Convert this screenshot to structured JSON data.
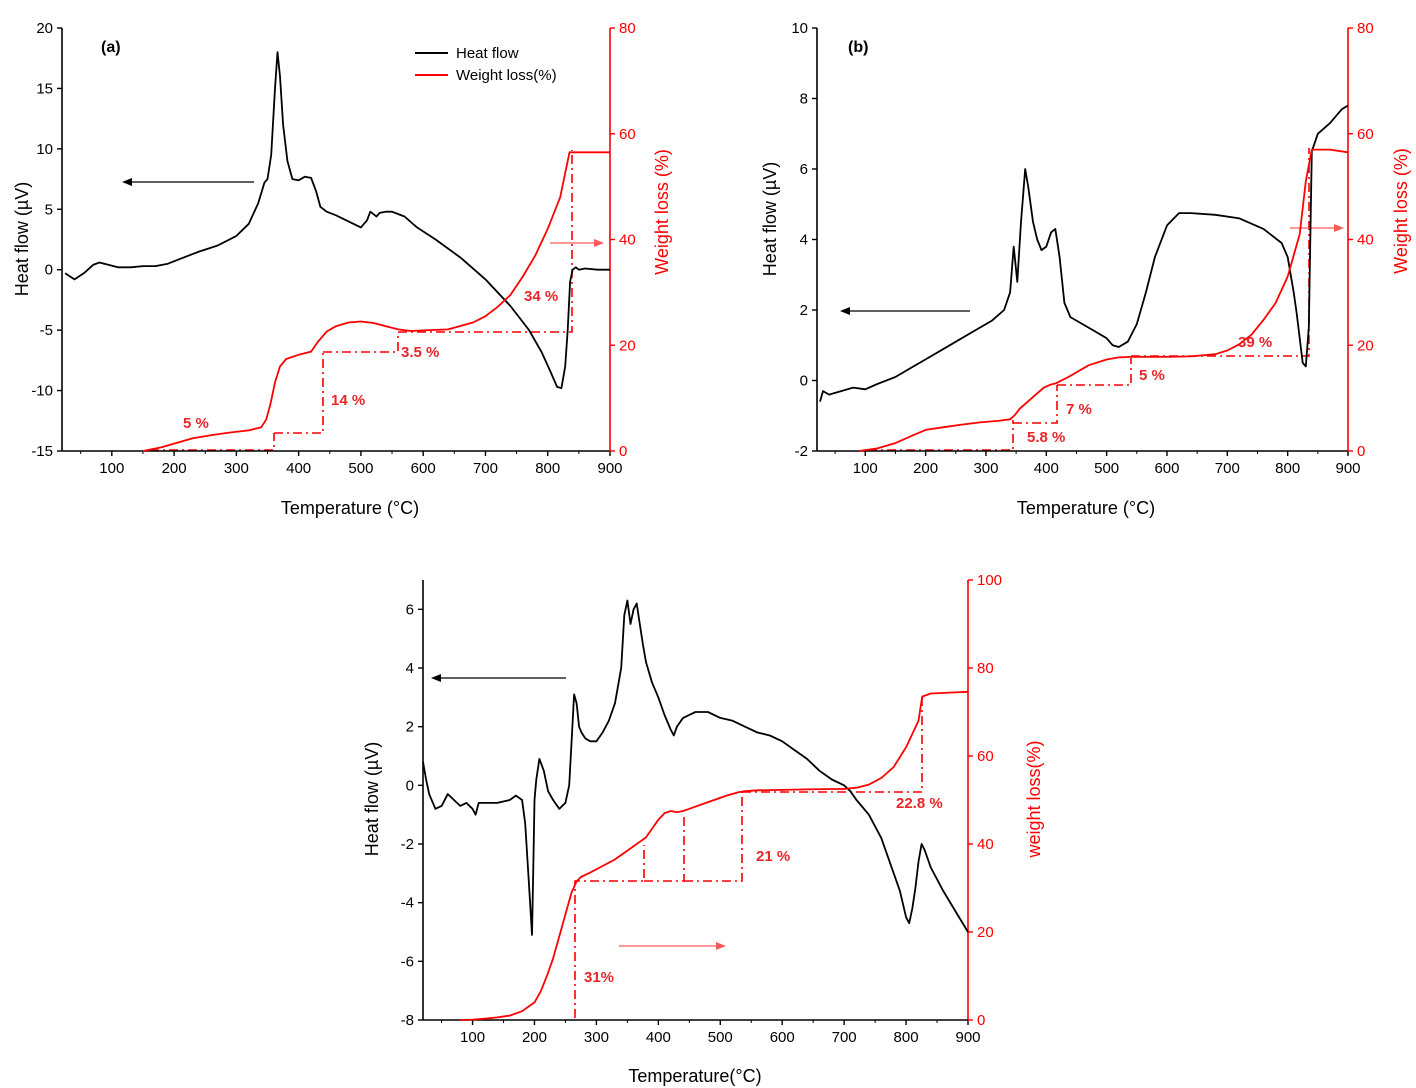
{
  "chart_data": [
    {
      "type": "line",
      "panel_label": "(a)",
      "xlabel": "Temperature (°C)",
      "ylabel": "Heat flow (µV)",
      "y2label": "Weight loss (%)",
      "xlim": [
        20,
        900
      ],
      "ylim": [
        -15,
        20
      ],
      "y2lim": [
        0,
        80
      ],
      "xticks": [
        100,
        200,
        300,
        400,
        500,
        600,
        700,
        800,
        900
      ],
      "yticks": [
        -15,
        -10,
        -5,
        0,
        5,
        10,
        15,
        20
      ],
      "y2ticks": [
        0,
        20,
        40,
        60,
        80
      ],
      "legend": {
        "placement": "top-center",
        "entries": [
          {
            "label": "Heat flow",
            "color": "#000000"
          },
          {
            "label": "Weight loss(%)",
            "color": "#ff0000"
          }
        ]
      },
      "series": [
        {
          "name": "Heat flow",
          "axis": "left",
          "color": "#000000",
          "x": [
            25,
            40,
            55,
            70,
            80,
            95,
            110,
            130,
            150,
            170,
            190,
            210,
            240,
            270,
            300,
            320,
            335,
            345,
            350,
            356,
            362,
            366,
            370,
            375,
            382,
            390,
            400,
            410,
            420,
            428,
            435,
            445,
            460,
            480,
            500,
            510,
            515,
            520,
            525,
            530,
            540,
            550,
            560,
            570,
            590,
            620,
            660,
            700,
            740,
            770,
            790,
            805,
            815,
            822,
            828,
            832,
            836,
            840,
            845,
            850,
            860,
            880,
            900
          ],
          "y": [
            -0.3,
            -0.8,
            -0.3,
            0.4,
            0.6,
            0.4,
            0.2,
            0.2,
            0.3,
            0.3,
            0.5,
            0.9,
            1.5,
            2,
            2.8,
            3.8,
            5.5,
            7.2,
            7.5,
            9.5,
            15,
            18,
            16,
            12,
            9,
            7.5,
            7.4,
            7.7,
            7.6,
            6.5,
            5.2,
            4.8,
            4.5,
            4,
            3.5,
            4.1,
            4.8,
            4.6,
            4.4,
            4.7,
            4.8,
            4.8,
            4.6,
            4.4,
            3.5,
            2.5,
            1,
            -0.8,
            -3,
            -5,
            -6.8,
            -8.5,
            -9.7,
            -9.8,
            -8,
            -5,
            -1,
            0,
            0.2,
            0,
            0.1,
            0,
            0
          ]
        },
        {
          "name": "Weight loss(%)",
          "axis": "right",
          "color": "#ff0000",
          "x": [
            150,
            180,
            200,
            230,
            260,
            290,
            320,
            340,
            348,
            355,
            362,
            370,
            380,
            400,
            420,
            430,
            445,
            460,
            480,
            500,
            520,
            540,
            560,
            580,
            600,
            640,
            680,
            700,
            720,
            740,
            760,
            780,
            800,
            820,
            835,
            850,
            900
          ],
          "y": [
            0,
            0.7,
            1.4,
            2.4,
            3,
            3.5,
            3.9,
            4.5,
            6,
            9,
            13,
            16,
            17.4,
            18.2,
            18.8,
            20.5,
            22.6,
            23.6,
            24.3,
            24.5,
            24.2,
            23.6,
            23,
            22.7,
            22.8,
            23,
            24.3,
            25.5,
            27.3,
            29.5,
            33,
            37,
            42,
            48,
            56.5,
            56.5,
            56.5
          ]
        }
      ],
      "annotations": [
        "5 %",
        "14 %",
        "3.5 %",
        "34 %"
      ]
    },
    {
      "type": "line",
      "panel_label": "(b)",
      "xlabel": "Temperature (°C)",
      "ylabel": "Heat flow (µV)",
      "y2label": "Weight loss (%)",
      "xlim": [
        20,
        900
      ],
      "ylim": [
        -2,
        10
      ],
      "y2lim": [
        0,
        80
      ],
      "xticks": [
        100,
        200,
        300,
        400,
        500,
        600,
        700,
        800,
        900
      ],
      "yticks": [
        -2,
        0,
        2,
        4,
        6,
        8,
        10
      ],
      "y2ticks": [
        0,
        20,
        40,
        60,
        80
      ],
      "series": [
        {
          "name": "Heat flow",
          "axis": "left",
          "color": "#000000",
          "x": [
            25,
            30,
            40,
            60,
            80,
            100,
            120,
            150,
            180,
            200,
            230,
            260,
            290,
            310,
            330,
            340,
            346,
            352,
            358,
            365,
            370,
            378,
            385,
            392,
            400,
            408,
            415,
            422,
            430,
            440,
            460,
            480,
            500,
            510,
            520,
            535,
            550,
            565,
            580,
            600,
            620,
            640,
            680,
            720,
            760,
            790,
            800,
            805,
            810,
            815,
            820,
            825,
            830,
            835,
            840,
            850,
            870,
            890,
            900
          ],
          "y": [
            -0.6,
            -0.3,
            -0.4,
            -0.3,
            -0.2,
            -0.25,
            -0.1,
            0.1,
            0.4,
            0.6,
            0.9,
            1.2,
            1.5,
            1.7,
            2,
            2.5,
            3.8,
            2.8,
            4.5,
            6,
            5.5,
            4.5,
            4,
            3.7,
            3.8,
            4.2,
            4.3,
            3.5,
            2.2,
            1.8,
            1.6,
            1.4,
            1.2,
            1,
            0.95,
            1.1,
            1.6,
            2.5,
            3.5,
            4.4,
            4.75,
            4.75,
            4.7,
            4.6,
            4.3,
            3.9,
            3.5,
            3,
            2.5,
            1.9,
            1.2,
            0.5,
            0.4,
            1.5,
            6.5,
            7,
            7.3,
            7.7,
            7.8
          ]
        },
        {
          "name": "Weight loss(%)",
          "axis": "right",
          "color": "#ff0000",
          "x": [
            90,
            120,
            150,
            180,
            200,
            230,
            260,
            290,
            320,
            340,
            348,
            356,
            366,
            376,
            386,
            396,
            406,
            416,
            440,
            470,
            500,
            520,
            540,
            560,
            600,
            640,
            680,
            700,
            720,
            740,
            760,
            780,
            800,
            820,
            830,
            840,
            870,
            900
          ],
          "y": [
            0,
            0.5,
            1.5,
            3,
            4,
            4.5,
            5,
            5.4,
            5.7,
            6,
            6.8,
            8,
            9,
            10,
            11,
            12,
            12.5,
            12.8,
            14.2,
            16.2,
            17.3,
            17.7,
            17.8,
            17.8,
            17.8,
            17.9,
            18.3,
            19,
            20.2,
            22,
            24.8,
            28,
            33,
            41,
            51,
            57,
            57,
            56.5
          ]
        }
      ],
      "annotations": [
        "5.8 %",
        "7 %",
        "5 %",
        "39 %"
      ]
    },
    {
      "type": "line",
      "panel_label": "",
      "xlabel": "Temperature(°C)",
      "ylabel": "Heat flow (µV)",
      "y2label": "weight loss(%)",
      "xlim": [
        20,
        900
      ],
      "ylim": [
        -8,
        7
      ],
      "y2lim": [
        0,
        100
      ],
      "xticks": [
        100,
        200,
        300,
        400,
        500,
        600,
        700,
        800,
        900
      ],
      "yticks": [
        -8,
        -6,
        -4,
        -2,
        0,
        2,
        4,
        6
      ],
      "y2ticks": [
        0,
        20,
        40,
        60,
        80,
        100
      ],
      "series": [
        {
          "name": "Heat flow",
          "axis": "left",
          "color": "#000000",
          "x": [
            20,
            25,
            30,
            40,
            50,
            60,
            70,
            80,
            90,
            100,
            105,
            110,
            120,
            140,
            160,
            170,
            180,
            185,
            190,
            193,
            196,
            198,
            200,
            203,
            208,
            215,
            222,
            230,
            240,
            250,
            256,
            260,
            264,
            268,
            272,
            276,
            282,
            290,
            300,
            310,
            320,
            330,
            340,
            345,
            350,
            355,
            360,
            365,
            370,
            375,
            380,
            390,
            400,
            410,
            420,
            425,
            430,
            440,
            450,
            460,
            470,
            480,
            500,
            520,
            540,
            560,
            580,
            600,
            620,
            640,
            660,
            680,
            700,
            710,
            720,
            740,
            760,
            780,
            790,
            800,
            805,
            810,
            815,
            820,
            825,
            830,
            840,
            860,
            880,
            900
          ],
          "y": [
            0.8,
            0.2,
            -0.3,
            -0.8,
            -0.7,
            -0.3,
            -0.5,
            -0.7,
            -0.6,
            -0.8,
            -1,
            -0.6,
            -0.6,
            -0.6,
            -0.5,
            -0.35,
            -0.5,
            -1.3,
            -3,
            -4,
            -5.1,
            -3,
            -0.5,
            0.2,
            0.9,
            0.5,
            -0.2,
            -0.5,
            -0.8,
            -0.6,
            0,
            1.5,
            3.1,
            2.8,
            2,
            1.8,
            1.6,
            1.5,
            1.5,
            1.8,
            2.2,
            2.8,
            4,
            5.8,
            6.3,
            5.5,
            6,
            6.2,
            5.5,
            4.8,
            4.2,
            3.5,
            3,
            2.4,
            1.9,
            1.7,
            2,
            2.3,
            2.4,
            2.5,
            2.5,
            2.5,
            2.3,
            2.2,
            2,
            1.8,
            1.7,
            1.5,
            1.2,
            0.9,
            0.5,
            0.2,
            0,
            -0.2,
            -0.5,
            -1,
            -1.8,
            -3,
            -3.6,
            -4.5,
            -4.7,
            -4.2,
            -3.5,
            -2.6,
            -2,
            -2.2,
            -2.8,
            -3.6,
            -4.3,
            -5
          ]
        },
        {
          "name": "Weight loss(%)",
          "axis": "right",
          "color": "#ff0000",
          "x": [
            80,
            100,
            120,
            140,
            160,
            180,
            200,
            210,
            220,
            230,
            240,
            250,
            260,
            268,
            275,
            290,
            310,
            330,
            350,
            370,
            380,
            390,
            400,
            410,
            420,
            430,
            440,
            450,
            470,
            490,
            510,
            530,
            540,
            560,
            600,
            640,
            680,
            700,
            720,
            740,
            760,
            780,
            800,
            810,
            820,
            826,
            840,
            870,
            900
          ],
          "y": [
            0,
            0.1,
            0.3,
            0.6,
            1,
            2,
            4,
            6.5,
            10,
            14,
            19,
            24,
            29,
            31.5,
            32.5,
            33.5,
            35,
            36.5,
            38.5,
            40.5,
            41.5,
            43.5,
            45.5,
            47,
            47.5,
            47.2,
            47.5,
            48,
            49,
            50,
            51,
            51.8,
            52,
            52.2,
            52.3,
            52.4,
            52.5,
            52.5,
            52.8,
            53.5,
            55,
            57.5,
            62,
            65,
            68,
            73.5,
            74.2,
            74.4,
            74.6
          ]
        }
      ],
      "annotations": [
        "31%",
        "21 %",
        "22.8 %"
      ]
    }
  ]
}
